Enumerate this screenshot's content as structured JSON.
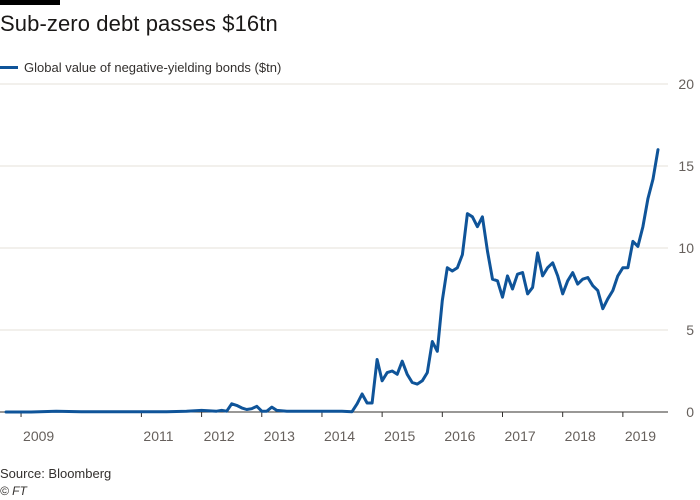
{
  "header": {
    "title": "Sub-zero debt passes $16tn"
  },
  "footer": {
    "source": "Source: Bloomberg",
    "copyright": "© FT"
  },
  "colors": {
    "line": "#0f5499",
    "grid": "#e6e0d8",
    "axis": "#33302e",
    "tick_text": "#66605c",
    "top_bar": "#000000"
  },
  "chart_data": {
    "type": "line",
    "title": "Sub-zero debt passes $16tn",
    "series": [
      {
        "name": "Global value of negative-yielding bonds ($tn)",
        "points": [
          [
            "2008-10",
            0.0
          ],
          [
            "2009-03",
            0.0
          ],
          [
            "2009-08",
            0.05
          ],
          [
            "2010-01",
            0.02
          ],
          [
            "2010-06",
            0.02
          ],
          [
            "2010-12",
            0.02
          ],
          [
            "2011-06",
            0.02
          ],
          [
            "2011-10",
            0.05
          ],
          [
            "2012-01",
            0.1
          ],
          [
            "2012-04",
            0.05
          ],
          [
            "2012-05",
            0.1
          ],
          [
            "2012-06",
            0.05
          ],
          [
            "2012-07",
            0.5
          ],
          [
            "2012-08",
            0.4
          ],
          [
            "2012-09",
            0.25
          ],
          [
            "2012-10",
            0.15
          ],
          [
            "2012-11",
            0.2
          ],
          [
            "2012-12",
            0.35
          ],
          [
            "2013-01",
            0.05
          ],
          [
            "2013-02",
            0.05
          ],
          [
            "2013-03",
            0.3
          ],
          [
            "2013-04",
            0.1
          ],
          [
            "2013-06",
            0.05
          ],
          [
            "2013-12",
            0.05
          ],
          [
            "2014-05",
            0.05
          ],
          [
            "2014-07",
            0.02
          ],
          [
            "2014-08",
            0.5
          ],
          [
            "2014-09",
            1.1
          ],
          [
            "2014-10",
            0.55
          ],
          [
            "2014-11",
            0.55
          ],
          [
            "2014-12",
            3.2
          ],
          [
            "2015-01",
            1.9
          ],
          [
            "2015-02",
            2.4
          ],
          [
            "2015-03",
            2.5
          ],
          [
            "2015-04",
            2.3
          ],
          [
            "2015-05",
            3.1
          ],
          [
            "2015-06",
            2.3
          ],
          [
            "2015-07",
            1.8
          ],
          [
            "2015-08",
            1.7
          ],
          [
            "2015-09",
            1.9
          ],
          [
            "2015-10",
            2.4
          ],
          [
            "2015-11",
            4.3
          ],
          [
            "2015-12",
            3.7
          ],
          [
            "2016-01",
            6.8
          ],
          [
            "2016-02",
            8.8
          ],
          [
            "2016-03",
            8.6
          ],
          [
            "2016-04",
            8.8
          ],
          [
            "2016-05",
            9.6
          ],
          [
            "2016-06",
            12.1
          ],
          [
            "2016-07",
            11.9
          ],
          [
            "2016-08",
            11.3
          ],
          [
            "2016-09",
            11.9
          ],
          [
            "2016-10",
            9.8
          ],
          [
            "2016-11",
            8.1
          ],
          [
            "2016-12",
            8.0
          ],
          [
            "2017-01",
            7.0
          ],
          [
            "2017-02",
            8.3
          ],
          [
            "2017-03",
            7.5
          ],
          [
            "2017-04",
            8.4
          ],
          [
            "2017-05",
            8.5
          ],
          [
            "2017-06",
            7.2
          ],
          [
            "2017-07",
            7.6
          ],
          [
            "2017-08",
            9.7
          ],
          [
            "2017-09",
            8.3
          ],
          [
            "2017-10",
            8.8
          ],
          [
            "2017-11",
            9.1
          ],
          [
            "2017-12",
            8.3
          ],
          [
            "2018-01",
            7.2
          ],
          [
            "2018-02",
            8.0
          ],
          [
            "2018-03",
            8.5
          ],
          [
            "2018-04",
            7.8
          ],
          [
            "2018-05",
            8.1
          ],
          [
            "2018-06",
            8.2
          ],
          [
            "2018-07",
            7.7
          ],
          [
            "2018-08",
            7.4
          ],
          [
            "2018-09",
            6.3
          ],
          [
            "2018-10",
            6.9
          ],
          [
            "2018-11",
            7.4
          ],
          [
            "2018-12",
            8.3
          ],
          [
            "2019-01",
            8.8
          ],
          [
            "2019-02",
            8.8
          ],
          [
            "2019-03",
            10.4
          ],
          [
            "2019-04",
            10.1
          ],
          [
            "2019-05",
            11.3
          ],
          [
            "2019-06",
            13.0
          ],
          [
            "2019-07",
            14.2
          ],
          [
            "2019-08",
            16.0
          ]
        ]
      }
    ],
    "x_ticks": [
      "2009",
      "2011",
      "2012",
      "2013",
      "2014",
      "2015",
      "2016",
      "2017",
      "2018",
      "2019"
    ],
    "y_ticks": [
      "0",
      "5",
      "10",
      "15",
      "20"
    ],
    "xlim": [
      "2008-10",
      "2019-10"
    ],
    "ylim": [
      0,
      20
    ],
    "y_axis_side": "right",
    "grid": true,
    "legend_position": "top-left"
  }
}
